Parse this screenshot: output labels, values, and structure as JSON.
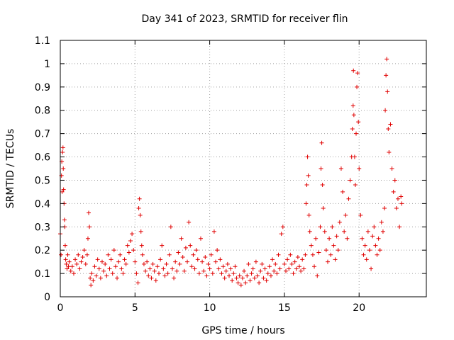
{
  "chart_data": {
    "type": "scatter",
    "title": "Day 341 of 2023, SRMTID for receiver flin",
    "xlabel": "GPS time / hours",
    "ylabel": "SRMTID / TECUs",
    "xlim": [
      0,
      24.5
    ],
    "ylim": [
      0,
      1.1
    ],
    "x_ticks": [
      0,
      5,
      10,
      15,
      20
    ],
    "x_tick_labels": [
      "0",
      "5",
      "10",
      "15",
      "20"
    ],
    "y_ticks": [
      0,
      0.1,
      0.2,
      0.3,
      0.4,
      0.5,
      0.6,
      0.7,
      0.8,
      0.9,
      1,
      1.1
    ],
    "y_tick_labels": [
      "0",
      "0.1",
      "0.2",
      "0.3",
      "0.4",
      "0.5",
      "0.6",
      "0.7",
      "0.8",
      "0.9",
      "1",
      "1.1"
    ],
    "grid": true,
    "marker": "+",
    "marker_color": "#e00000",
    "series": [
      {
        "name": "SRMTID",
        "description": "dense per-epoch scatter, approximated by the sample points below (hours, TECU)",
        "points": [
          [
            0.0,
            0.27
          ],
          [
            0.05,
            0.18
          ],
          [
            0.08,
            0.52
          ],
          [
            0.1,
            0.58
          ],
          [
            0.12,
            0.45
          ],
          [
            0.15,
            0.62
          ],
          [
            0.18,
            0.64
          ],
          [
            0.2,
            0.55
          ],
          [
            0.22,
            0.46
          ],
          [
            0.25,
            0.4
          ],
          [
            0.28,
            0.33
          ],
          [
            0.3,
            0.3
          ],
          [
            0.33,
            0.22
          ],
          [
            0.36,
            0.16
          ],
          [
            0.4,
            0.14
          ],
          [
            0.45,
            0.12
          ],
          [
            0.5,
            0.18
          ],
          [
            0.55,
            0.13
          ],
          [
            0.6,
            0.15
          ],
          [
            0.7,
            0.11
          ],
          [
            0.8,
            0.13
          ],
          [
            0.9,
            0.1
          ],
          [
            1.0,
            0.16
          ],
          [
            1.1,
            0.14
          ],
          [
            1.2,
            0.18
          ],
          [
            1.3,
            0.12
          ],
          [
            1.4,
            0.15
          ],
          [
            1.5,
            0.17
          ],
          [
            1.6,
            0.2
          ],
          [
            1.7,
            0.14
          ],
          [
            1.8,
            0.18
          ],
          [
            1.85,
            0.25
          ],
          [
            1.9,
            0.36
          ],
          [
            1.95,
            0.3
          ],
          [
            2.0,
            0.08
          ],
          [
            2.05,
            0.05
          ],
          [
            2.1,
            0.1
          ],
          [
            2.2,
            0.07
          ],
          [
            2.3,
            0.13
          ],
          [
            2.4,
            0.09
          ],
          [
            2.5,
            0.16
          ],
          [
            2.6,
            0.12
          ],
          [
            2.7,
            0.08
          ],
          [
            2.8,
            0.15
          ],
          [
            2.9,
            0.11
          ],
          [
            3.0,
            0.14
          ],
          [
            3.1,
            0.09
          ],
          [
            3.2,
            0.18
          ],
          [
            3.3,
            0.12
          ],
          [
            3.4,
            0.16
          ],
          [
            3.5,
            0.1
          ],
          [
            3.6,
            0.2
          ],
          [
            3.7,
            0.13
          ],
          [
            3.8,
            0.08
          ],
          [
            3.9,
            0.15
          ],
          [
            4.0,
            0.18
          ],
          [
            4.1,
            0.12
          ],
          [
            4.2,
            0.1
          ],
          [
            4.3,
            0.16
          ],
          [
            4.4,
            0.14
          ],
          [
            4.5,
            0.22
          ],
          [
            4.6,
            0.19
          ],
          [
            4.7,
            0.24
          ],
          [
            4.8,
            0.27
          ],
          [
            4.9,
            0.2
          ],
          [
            5.0,
            0.15
          ],
          [
            5.1,
            0.1
          ],
          [
            5.2,
            0.06
          ],
          [
            5.25,
            0.38
          ],
          [
            5.3,
            0.42
          ],
          [
            5.35,
            0.35
          ],
          [
            5.4,
            0.28
          ],
          [
            5.45,
            0.22
          ],
          [
            5.5,
            0.18
          ],
          [
            5.6,
            0.14
          ],
          [
            5.7,
            0.11
          ],
          [
            5.8,
            0.15
          ],
          [
            5.9,
            0.09
          ],
          [
            6.0,
            0.12
          ],
          [
            6.1,
            0.08
          ],
          [
            6.2,
            0.14
          ],
          [
            6.3,
            0.11
          ],
          [
            6.4,
            0.07
          ],
          [
            6.5,
            0.13
          ],
          [
            6.6,
            0.1
          ],
          [
            6.7,
            0.16
          ],
          [
            6.8,
            0.22
          ],
          [
            6.9,
            0.12
          ],
          [
            7.0,
            0.09
          ],
          [
            7.1,
            0.14
          ],
          [
            7.2,
            0.1
          ],
          [
            7.3,
            0.18
          ],
          [
            7.4,
            0.3
          ],
          [
            7.5,
            0.12
          ],
          [
            7.6,
            0.08
          ],
          [
            7.7,
            0.15
          ],
          [
            7.8,
            0.11
          ],
          [
            7.9,
            0.19
          ],
          [
            8.0,
            0.14
          ],
          [
            8.1,
            0.25
          ],
          [
            8.2,
            0.17
          ],
          [
            8.3,
            0.11
          ],
          [
            8.4,
            0.21
          ],
          [
            8.5,
            0.15
          ],
          [
            8.6,
            0.32
          ],
          [
            8.7,
            0.22
          ],
          [
            8.8,
            0.13
          ],
          [
            8.9,
            0.18
          ],
          [
            9.0,
            0.12
          ],
          [
            9.1,
            0.2
          ],
          [
            9.2,
            0.16
          ],
          [
            9.3,
            0.1
          ],
          [
            9.4,
            0.25
          ],
          [
            9.5,
            0.15
          ],
          [
            9.6,
            0.11
          ],
          [
            9.7,
            0.17
          ],
          [
            9.8,
            0.09
          ],
          [
            9.9,
            0.14
          ],
          [
            10.0,
            0.12
          ],
          [
            10.1,
            0.18
          ],
          [
            10.2,
            0.1
          ],
          [
            10.3,
            0.28
          ],
          [
            10.4,
            0.15
          ],
          [
            10.5,
            0.2
          ],
          [
            10.6,
            0.12
          ],
          [
            10.7,
            0.16
          ],
          [
            10.8,
            0.1
          ],
          [
            10.9,
            0.13
          ],
          [
            11.0,
            0.08
          ],
          [
            11.1,
            0.11
          ],
          [
            11.2,
            0.14
          ],
          [
            11.3,
            0.09
          ],
          [
            11.4,
            0.12
          ],
          [
            11.5,
            0.07
          ],
          [
            11.6,
            0.1
          ],
          [
            11.7,
            0.13
          ],
          [
            11.8,
            0.08
          ],
          [
            11.9,
            0.06
          ],
          [
            12.0,
            0.09
          ],
          [
            12.1,
            0.05
          ],
          [
            12.2,
            0.08
          ],
          [
            12.3,
            0.11
          ],
          [
            12.4,
            0.06
          ],
          [
            12.5,
            0.09
          ],
          [
            12.6,
            0.14
          ],
          [
            12.7,
            0.07
          ],
          [
            12.8,
            0.1
          ],
          [
            12.9,
            0.12
          ],
          [
            13.0,
            0.08
          ],
          [
            13.1,
            0.15
          ],
          [
            13.2,
            0.09
          ],
          [
            13.3,
            0.06
          ],
          [
            13.4,
            0.11
          ],
          [
            13.5,
            0.14
          ],
          [
            13.6,
            0.08
          ],
          [
            13.7,
            0.12
          ],
          [
            13.8,
            0.07
          ],
          [
            13.9,
            0.1
          ],
          [
            14.0,
            0.13
          ],
          [
            14.1,
            0.09
          ],
          [
            14.2,
            0.16
          ],
          [
            14.3,
            0.11
          ],
          [
            14.4,
            0.14
          ],
          [
            14.5,
            0.1
          ],
          [
            14.6,
            0.18
          ],
          [
            14.7,
            0.12
          ],
          [
            14.8,
            0.27
          ],
          [
            14.9,
            0.3
          ],
          [
            15.0,
            0.14
          ],
          [
            15.1,
            0.11
          ],
          [
            15.2,
            0.16
          ],
          [
            15.3,
            0.12
          ],
          [
            15.4,
            0.18
          ],
          [
            15.5,
            0.14
          ],
          [
            15.6,
            0.1
          ],
          [
            15.7,
            0.15
          ],
          [
            15.8,
            0.12
          ],
          [
            15.9,
            0.17
          ],
          [
            16.0,
            0.13
          ],
          [
            16.1,
            0.11
          ],
          [
            16.2,
            0.16
          ],
          [
            16.3,
            0.12
          ],
          [
            16.4,
            0.18
          ],
          [
            16.45,
            0.4
          ],
          [
            16.5,
            0.48
          ],
          [
            16.55,
            0.6
          ],
          [
            16.6,
            0.52
          ],
          [
            16.65,
            0.35
          ],
          [
            16.7,
            0.28
          ],
          [
            16.8,
            0.22
          ],
          [
            16.9,
            0.18
          ],
          [
            17.0,
            0.13
          ],
          [
            17.1,
            0.25
          ],
          [
            17.2,
            0.09
          ],
          [
            17.3,
            0.19
          ],
          [
            17.4,
            0.3
          ],
          [
            17.45,
            0.55
          ],
          [
            17.5,
            0.66
          ],
          [
            17.55,
            0.48
          ],
          [
            17.6,
            0.38
          ],
          [
            17.7,
            0.28
          ],
          [
            17.8,
            0.2
          ],
          [
            17.9,
            0.15
          ],
          [
            18.0,
            0.25
          ],
          [
            18.1,
            0.18
          ],
          [
            18.2,
            0.3
          ],
          [
            18.3,
            0.22
          ],
          [
            18.4,
            0.16
          ],
          [
            18.5,
            0.26
          ],
          [
            18.6,
            0.2
          ],
          [
            18.7,
            0.32
          ],
          [
            18.8,
            0.55
          ],
          [
            18.9,
            0.45
          ],
          [
            19.0,
            0.28
          ],
          [
            19.1,
            0.35
          ],
          [
            19.2,
            0.25
          ],
          [
            19.3,
            0.42
          ],
          [
            19.4,
            0.5
          ],
          [
            19.5,
            0.6
          ],
          [
            19.55,
            0.72
          ],
          [
            19.6,
            0.82
          ],
          [
            19.62,
            0.97
          ],
          [
            19.65,
            0.78
          ],
          [
            19.7,
            0.6
          ],
          [
            19.75,
            0.48
          ],
          [
            19.8,
            0.7
          ],
          [
            19.85,
            0.9
          ],
          [
            19.9,
            0.96
          ],
          [
            19.95,
            0.75
          ],
          [
            20.0,
            0.55
          ],
          [
            20.1,
            0.35
          ],
          [
            20.2,
            0.25
          ],
          [
            20.3,
            0.18
          ],
          [
            20.4,
            0.22
          ],
          [
            20.5,
            0.16
          ],
          [
            20.6,
            0.28
          ],
          [
            20.7,
            0.2
          ],
          [
            20.8,
            0.12
          ],
          [
            20.9,
            0.26
          ],
          [
            21.0,
            0.3
          ],
          [
            21.1,
            0.22
          ],
          [
            21.2,
            0.18
          ],
          [
            21.3,
            0.25
          ],
          [
            21.4,
            0.2
          ],
          [
            21.5,
            0.32
          ],
          [
            21.6,
            0.28
          ],
          [
            21.7,
            0.38
          ],
          [
            21.75,
            0.8
          ],
          [
            21.8,
            0.95
          ],
          [
            21.85,
            1.02
          ],
          [
            21.9,
            0.88
          ],
          [
            21.95,
            0.72
          ],
          [
            22.0,
            0.62
          ],
          [
            22.1,
            0.74
          ],
          [
            22.2,
            0.55
          ],
          [
            22.3,
            0.45
          ],
          [
            22.4,
            0.5
          ],
          [
            22.5,
            0.38
          ],
          [
            22.6,
            0.42
          ],
          [
            22.7,
            0.3
          ],
          [
            22.8,
            0.43
          ],
          [
            22.85,
            0.4
          ]
        ]
      }
    ]
  }
}
